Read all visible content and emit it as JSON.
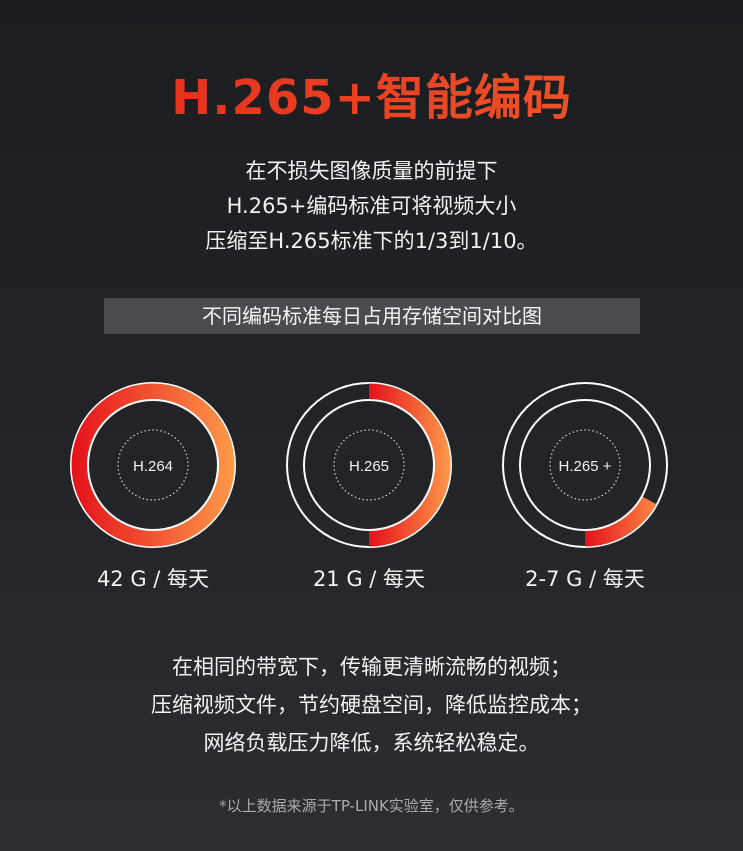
{
  "title": "H.265+智能编码",
  "intro": [
    "在不损失图像质量的前提下",
    "H.265+编码标准可将视频大小",
    "压缩至H.265标准下的1/3到1/10。"
  ],
  "banner": "不同编码标准每日占用存储空间对比图",
  "colors": {
    "accent_start": "#e4101a",
    "accent_end": "#ff9a4a",
    "ring": "#ffffff",
    "background": "#1f2125"
  },
  "chart_data": {
    "type": "pie",
    "title": "不同编码标准每日占用存储空间对比图",
    "categories": [
      "H.264",
      "H.265",
      "H.265 +"
    ],
    "fill_fraction": [
      1.0,
      0.5,
      0.17
    ],
    "captions": [
      "42 G / 每天",
      "21 G / 每天",
      "2-7 G / 每天"
    ]
  },
  "body": [
    "在相同的带宽下，传输更清晰流畅的视频；",
    "压缩视频文件，节约硬盘空间，降低监控成本；",
    "网络负载压力降低，系统轻松稳定。"
  ],
  "note": "*以上数据来源于TP-LINK实验室，仅供参考。"
}
